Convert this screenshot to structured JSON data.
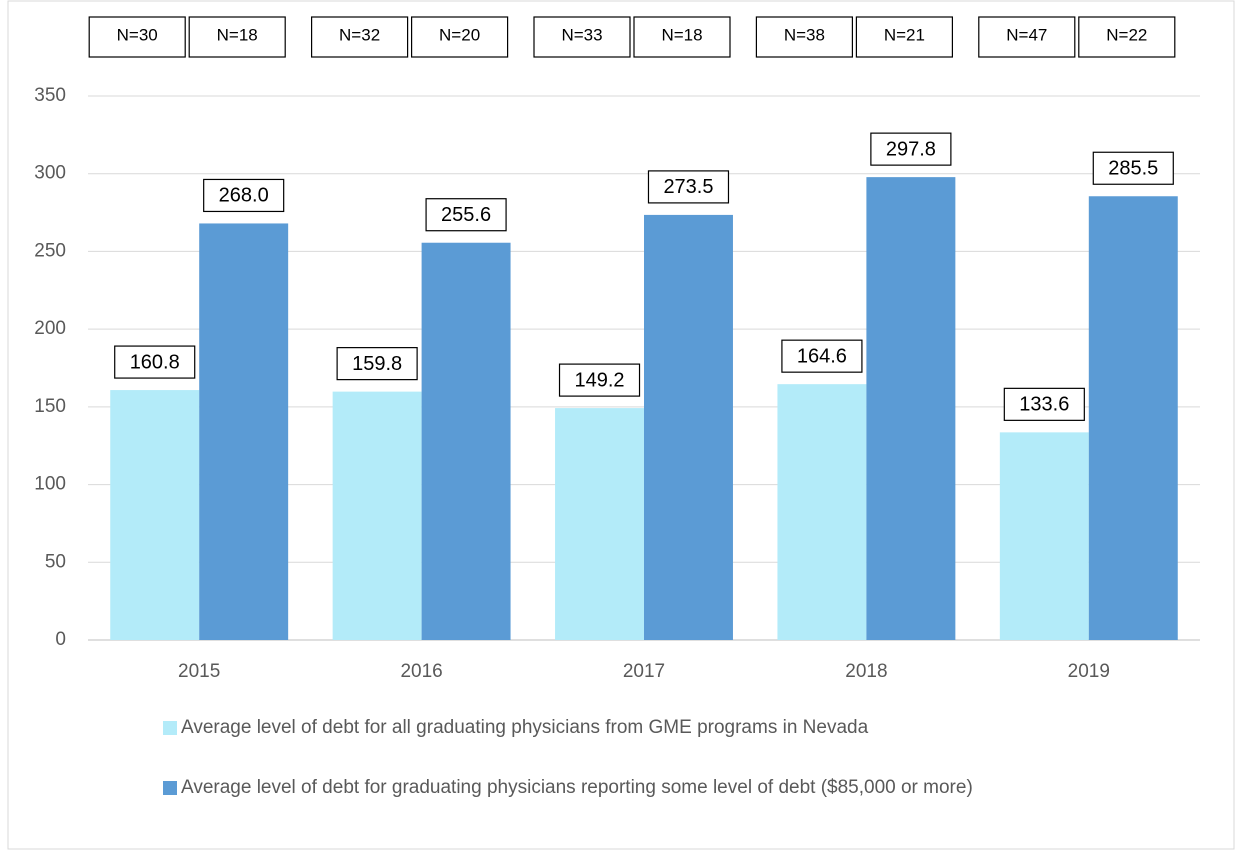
{
  "chart_data": {
    "type": "bar",
    "categories": [
      "2015",
      "2016",
      "2017",
      "2018",
      "2019"
    ],
    "series": [
      {
        "name": "Average level of debt for all graduating physicians from GME programs in Nevada",
        "color": "#b3ebf9",
        "values": [
          160.8,
          159.8,
          149.2,
          164.6,
          133.6
        ],
        "value_labels": [
          "160.8",
          "159.8",
          "149.2",
          "164.6",
          "133.6"
        ],
        "n_labels": [
          "N=30",
          "N=32",
          "N=33",
          "N=38",
          "N=47"
        ]
      },
      {
        "name": "Average level of debt for graduating physicians reporting some level of debt ($85,000 or more)",
        "color": "#5b9bd5",
        "values": [
          268.0,
          255.6,
          273.5,
          297.8,
          285.5
        ],
        "value_labels": [
          "268.0",
          "255.6",
          "273.5",
          "297.8",
          "285.5"
        ],
        "n_labels": [
          "N=18",
          "N=20",
          "N=18",
          "N=21",
          "N=22"
        ]
      }
    ],
    "ylim": [
      0,
      350
    ],
    "yticks": [
      0,
      50,
      100,
      150,
      200,
      250,
      300,
      350
    ],
    "grid": true
  }
}
